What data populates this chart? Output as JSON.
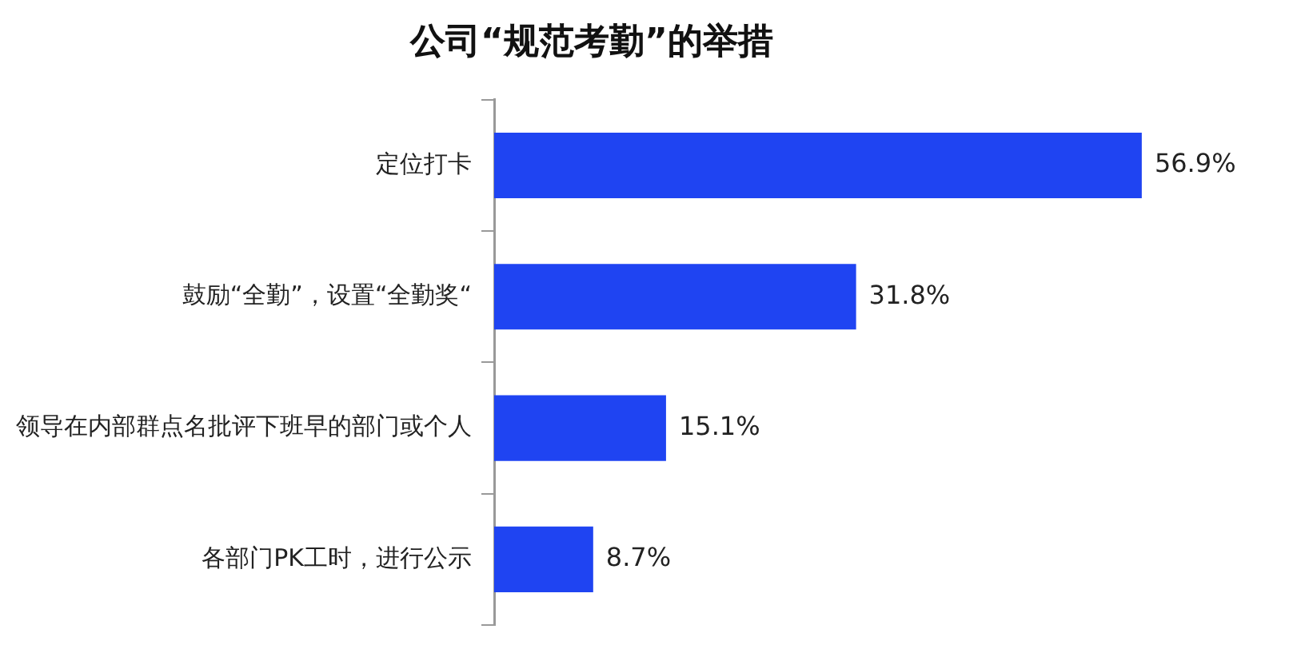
{
  "chart_data": {
    "type": "bar",
    "orientation": "horizontal",
    "title": "公司“规范考勤”的举措",
    "categories": [
      "定位打卡",
      "鼓励“全勤”，设置“全勤奖“",
      "领导在内部群点名批评下班早的部门或个人",
      "各部门PK工时，进行公示"
    ],
    "values": [
      56.9,
      31.8,
      15.1,
      8.7
    ],
    "value_labels": [
      "56.9%",
      "31.8%",
      "15.1%",
      "8.7%"
    ],
    "color": "#1f44f2",
    "grid": false,
    "legend": false
  }
}
